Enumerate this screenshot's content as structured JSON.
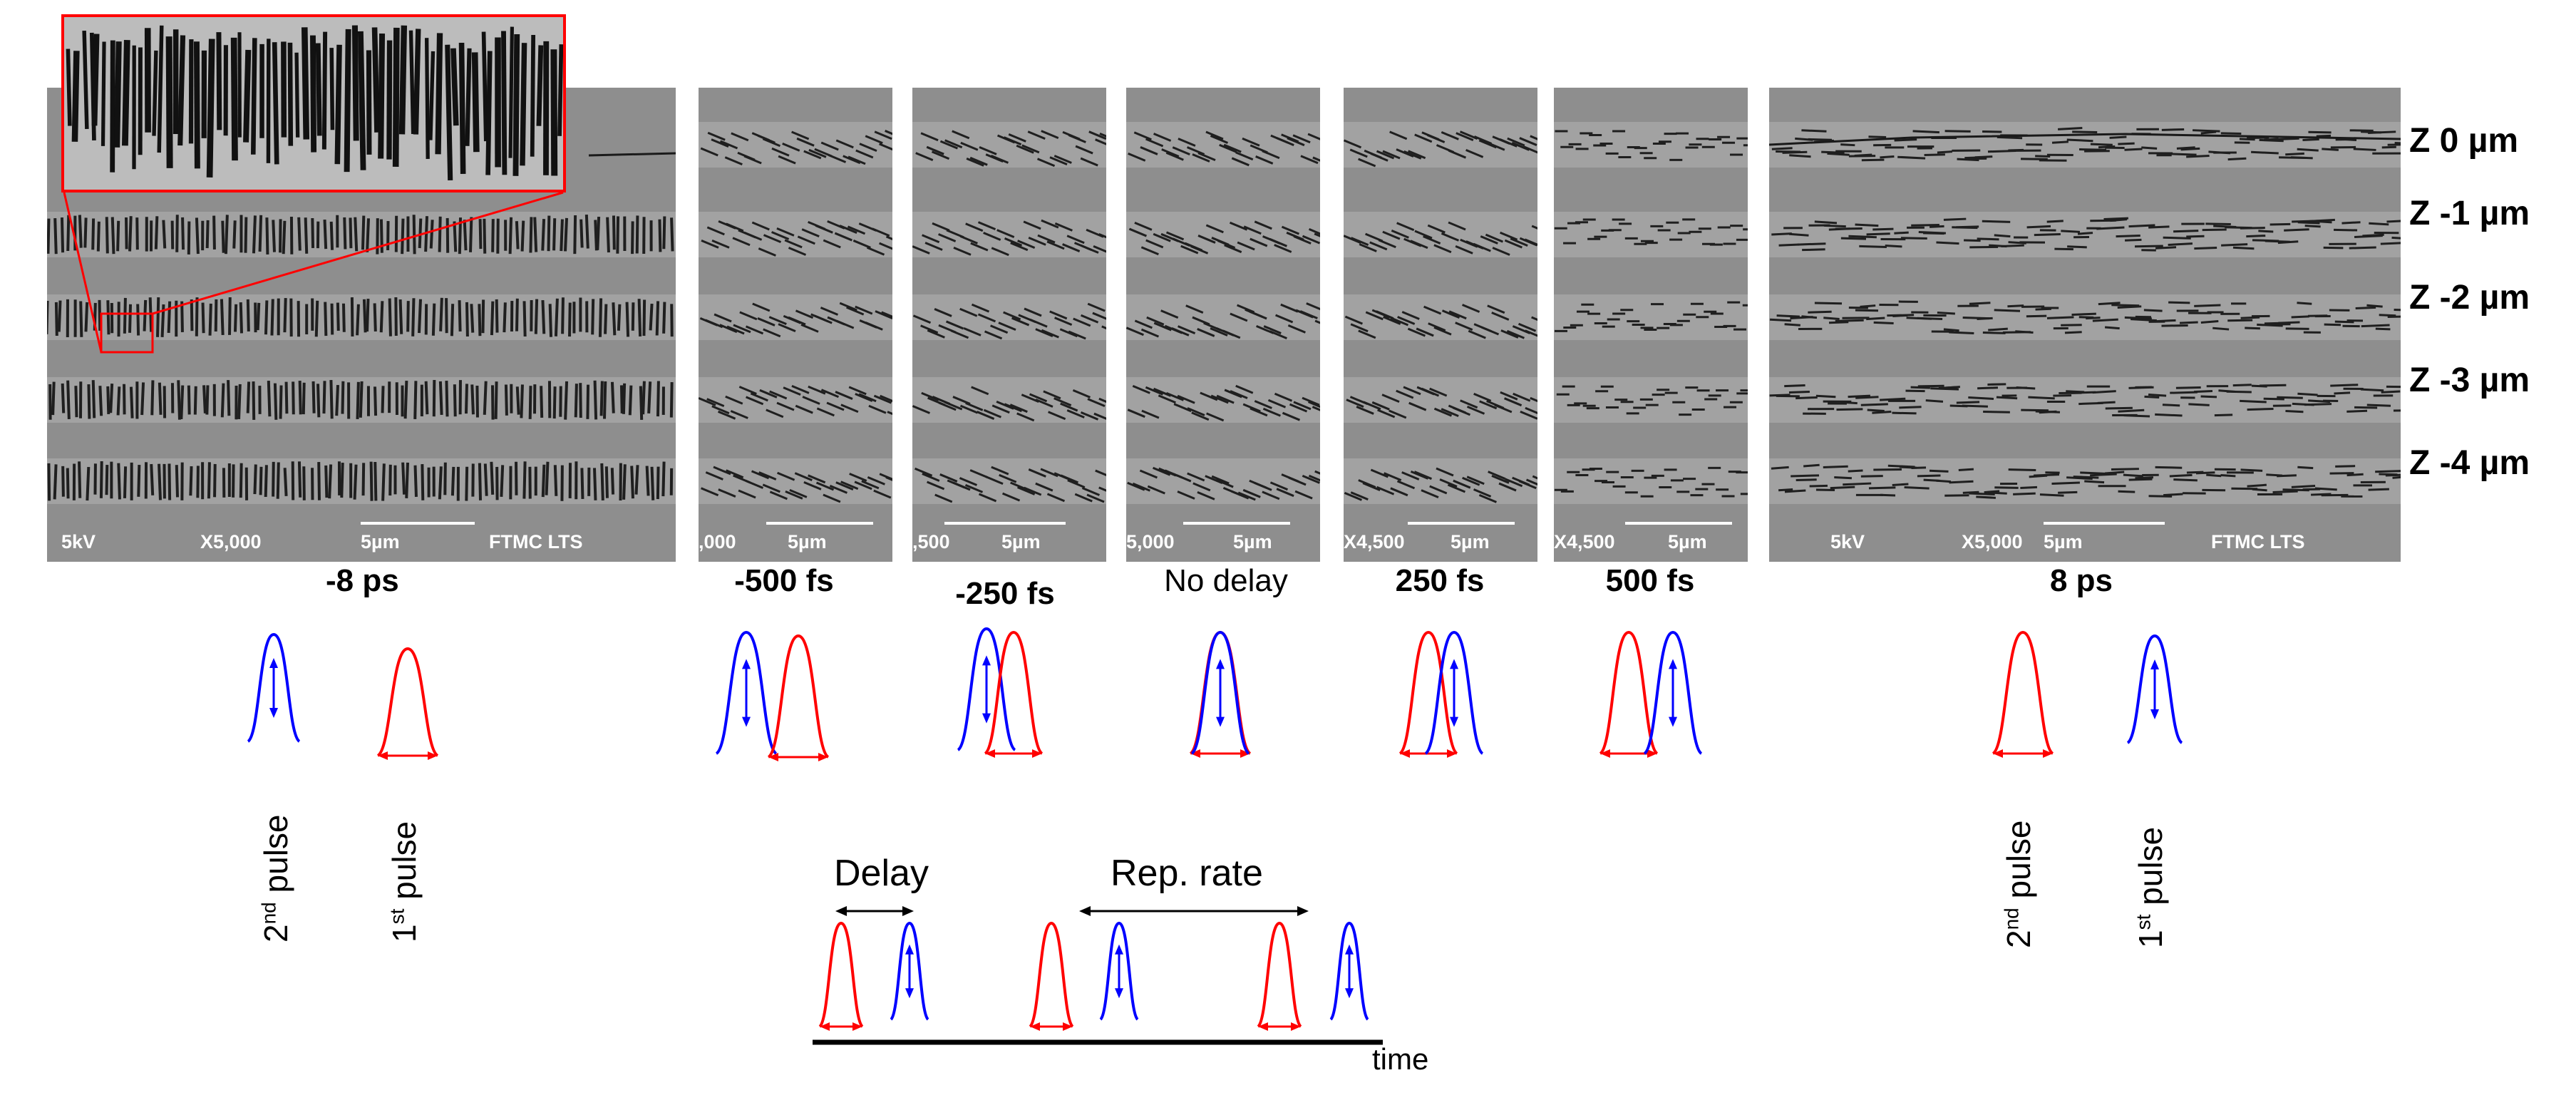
{
  "panels": [
    {
      "id": "p1",
      "delay": "-8 ps",
      "sem": {
        "kv": "5kV",
        "mag": "X5,000",
        "scale": "5µm",
        "lab": "FTMC LTS"
      }
    },
    {
      "id": "p2",
      "delay": "-500 fs",
      "sem": {
        "kv": "",
        "mag": ",000",
        "scale": "5µm",
        "lab": ""
      }
    },
    {
      "id": "p3",
      "delay": "-250 fs",
      "sem": {
        "kv": "",
        "mag": ",500",
        "scale": "5µm",
        "lab": ""
      }
    },
    {
      "id": "p4",
      "delay": "No delay",
      "sem": {
        "kv": "",
        "mag": "5,000",
        "scale": "5µm",
        "lab": ""
      }
    },
    {
      "id": "p5",
      "delay": "250 fs",
      "sem": {
        "kv": "",
        "mag": "X4,500",
        "scale": "5µm",
        "lab": ""
      }
    },
    {
      "id": "p6",
      "delay": "500 fs",
      "sem": {
        "kv": "",
        "mag": "X4,500",
        "scale": "5µm",
        "lab": ""
      }
    },
    {
      "id": "p7",
      "delay": "8 ps",
      "sem": {
        "kv": "5kV",
        "mag": "X5,000",
        "scale": "5µm",
        "lab": "FTMC LTS"
      }
    }
  ],
  "depth_labels": [
    "Z 0 µm",
    "Z -1 µm",
    "Z -2 µm",
    "Z -3 µm",
    "Z -4 µm"
  ],
  "pulse_labels": {
    "left_second": {
      "main": "2",
      "sup": "nd",
      "rest": " pulse"
    },
    "left_first": {
      "main": "1",
      "sup": "st",
      "rest": " pulse"
    },
    "right_second": {
      "main": "2",
      "sup": "nd",
      "rest": " pulse"
    },
    "right_first": {
      "main": "1",
      "sup": "st",
      "rest": " pulse"
    }
  },
  "timeline": {
    "delay": "Delay",
    "rep_rate": "Rep. rate",
    "time": "time"
  },
  "colors": {
    "first_pulse": "#ff0000",
    "second_pulse": "#0000ff",
    "sem_bg": "#8e8e8e",
    "stripe": "#2a2a2a",
    "inset_border": "#ff0000"
  }
}
